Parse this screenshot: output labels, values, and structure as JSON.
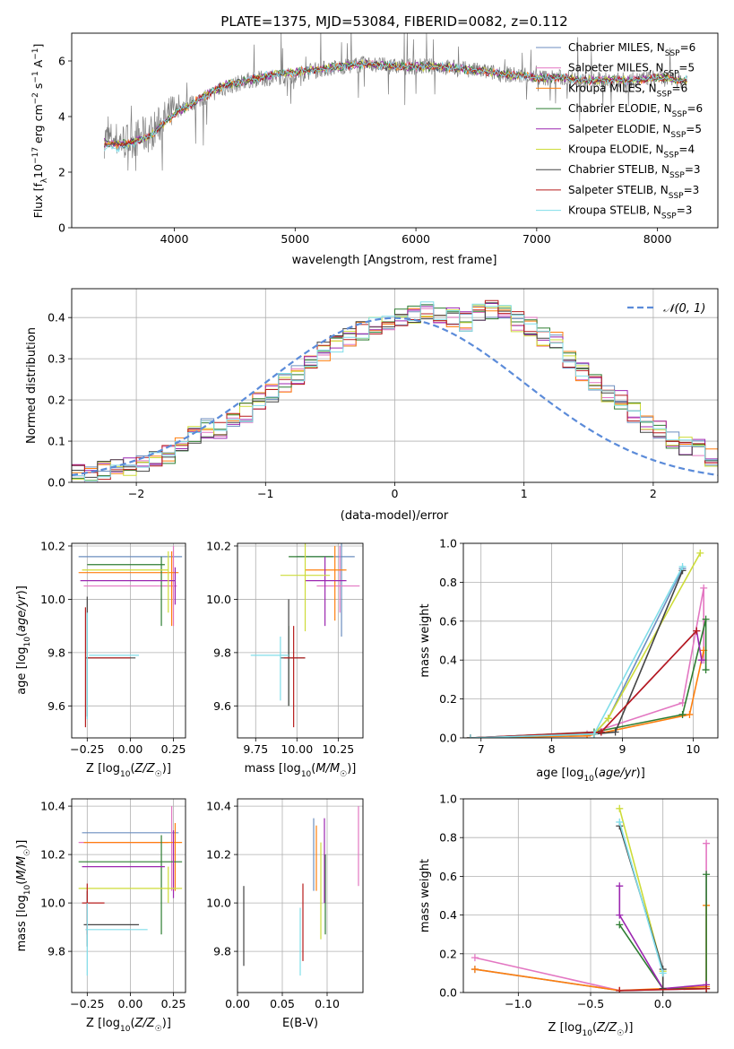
{
  "title": "PLATE=1375, MJD=53084, FIBERID=0082, z=0.112",
  "colors": {
    "chabrier_miles": "#6c8ebf",
    "salpeter_miles": "#e377c2",
    "kroupa_miles": "#ff7f0e",
    "chabrier_elodie": "#2e7d32",
    "salpeter_elodie": "#9c27b0",
    "kroupa_elodie": "#cddc39",
    "chabrier_stelib": "#444444",
    "salpeter_stelib": "#b71c1c",
    "kroupa_stelib": "#80deea",
    "data_spectrum": "#808080",
    "normal_curve": "#5b8bd9"
  },
  "chart_data": [
    {
      "id": "spectrum",
      "type": "line",
      "xlabel": "wavelength [Angstrom, rest frame]",
      "ylabel": "Flux [f_λ10^-17 erg cm^-2 s^-1 A^-1]",
      "xlim": [
        3150,
        8500
      ],
      "ylim": [
        0,
        7
      ],
      "xticks": [
        4000,
        5000,
        6000,
        7000,
        8000
      ],
      "yticks": [
        0,
        2,
        4,
        6
      ],
      "grid": false,
      "legend_position": "top-right",
      "x": [
        3400,
        3600,
        3800,
        4000,
        4200,
        4400,
        4600,
        4800,
        5000,
        5200,
        5400,
        5600,
        5800,
        6000,
        6200,
        6400,
        6600,
        6800,
        7000,
        7200,
        7400,
        7600,
        7800,
        8000,
        8200
      ],
      "series": [
        {
          "name": "data",
          "values": [
            3.2,
            3.1,
            3.4,
            4.2,
            4.6,
            5.0,
            5.3,
            5.4,
            5.5,
            5.7,
            5.8,
            5.9,
            5.8,
            5.8,
            5.8,
            5.7,
            5.6,
            5.5,
            5.4,
            5.4,
            5.3,
            5.3,
            5.3,
            5.4,
            5.3
          ]
        },
        {
          "name": "Chabrier MILES, N_SSP=6",
          "values": [
            3.0,
            3.0,
            3.3,
            4.1,
            4.6,
            5.1,
            5.3,
            5.5,
            5.6,
            5.7,
            5.8,
            5.9,
            5.8,
            5.8,
            5.8,
            5.7,
            5.6,
            5.5,
            5.4,
            5.4,
            5.3,
            5.3,
            5.3,
            5.4,
            5.3
          ]
        },
        {
          "name": "Salpeter MILES, N_SSP=5",
          "values": [
            3.0,
            3.0,
            3.3,
            4.1,
            4.6,
            5.1,
            5.3,
            5.5,
            5.6,
            5.7,
            5.8,
            5.9,
            5.8,
            5.8,
            5.8,
            5.7,
            5.6,
            5.5,
            5.4,
            5.4,
            5.3,
            5.3,
            5.3,
            5.4,
            5.3
          ]
        },
        {
          "name": "Kroupa MILES, N_SSP=6",
          "values": [
            3.0,
            3.0,
            3.3,
            4.1,
            4.6,
            5.1,
            5.3,
            5.5,
            5.6,
            5.7,
            5.8,
            5.9,
            5.8,
            5.8,
            5.8,
            5.7,
            5.6,
            5.5,
            5.4,
            5.4,
            5.3,
            5.3,
            5.3,
            5.4,
            5.3
          ]
        },
        {
          "name": "Chabrier ELODIE, N_SSP=6",
          "values": [
            3.1,
            3.0,
            3.3,
            4.1,
            4.6,
            5.1,
            5.3,
            5.5,
            5.6,
            5.7,
            5.8,
            5.9,
            5.8,
            5.8,
            5.8,
            5.7,
            5.6,
            5.5,
            5.4,
            5.4,
            5.3,
            5.3,
            5.3,
            5.4,
            5.3
          ]
        },
        {
          "name": "Salpeter ELODIE, N_SSP=5",
          "values": [
            3.1,
            3.0,
            3.3,
            4.1,
            4.6,
            5.1,
            5.3,
            5.5,
            5.6,
            5.7,
            5.8,
            5.9,
            5.8,
            5.8,
            5.8,
            5.7,
            5.6,
            5.5,
            5.4,
            5.4,
            5.3,
            5.3,
            5.3,
            5.4,
            5.3
          ]
        },
        {
          "name": "Kroupa ELODIE, N_SSP=4",
          "values": [
            3.1,
            3.0,
            3.3,
            4.1,
            4.6,
            5.1,
            5.3,
            5.5,
            5.6,
            5.7,
            5.8,
            5.9,
            5.8,
            5.8,
            5.8,
            5.7,
            5.6,
            5.5,
            5.4,
            5.4,
            5.3,
            5.3,
            5.3,
            5.4,
            5.3
          ]
        },
        {
          "name": "Chabrier STELIB, N_SSP=3",
          "values": [
            3.0,
            3.0,
            3.3,
            4.1,
            4.6,
            5.1,
            5.3,
            5.5,
            5.6,
            5.7,
            5.8,
            5.9,
            5.8,
            5.8,
            5.8,
            5.7,
            5.6,
            5.5,
            5.4,
            5.4,
            5.3,
            5.3,
            5.3,
            5.4,
            5.3
          ]
        },
        {
          "name": "Salpeter STELIB, N_SSP=3",
          "values": [
            3.0,
            3.0,
            3.3,
            4.1,
            4.6,
            5.1,
            5.3,
            5.5,
            5.6,
            5.7,
            5.8,
            5.9,
            5.8,
            5.8,
            5.8,
            5.7,
            5.6,
            5.5,
            5.4,
            5.4,
            5.3,
            5.3,
            5.3,
            5.4,
            5.3
          ]
        },
        {
          "name": "Kroupa STELIB, N_SSP=3",
          "values": [
            2.8,
            2.9,
            3.3,
            4.1,
            4.6,
            5.1,
            5.3,
            5.5,
            5.6,
            5.7,
            5.8,
            5.9,
            5.8,
            5.8,
            5.8,
            5.7,
            5.6,
            5.5,
            5.4,
            5.4,
            5.3,
            5.3,
            5.3,
            5.4,
            5.3
          ]
        }
      ],
      "legend_labels": [
        {
          "text": "Chabrier MILES, N",
          "sub": "SSP",
          "tail": "=6",
          "color_key": "chabrier_miles"
        },
        {
          "text": "Salpeter MILES, N",
          "sub": "SSP",
          "tail": "=5",
          "color_key": "salpeter_miles"
        },
        {
          "text": "Kroupa MILES, N",
          "sub": "SSP",
          "tail": "=6",
          "color_key": "kroupa_miles"
        },
        {
          "text": "Chabrier ELODIE, N",
          "sub": "SSP",
          "tail": "=6",
          "color_key": "chabrier_elodie"
        },
        {
          "text": "Salpeter ELODIE, N",
          "sub": "SSP",
          "tail": "=5",
          "color_key": "salpeter_elodie"
        },
        {
          "text": "Kroupa ELODIE, N",
          "sub": "SSP",
          "tail": "=4",
          "color_key": "kroupa_elodie"
        },
        {
          "text": "Chabrier STELIB, N",
          "sub": "SSP",
          "tail": "=3",
          "color_key": "chabrier_stelib"
        },
        {
          "text": "Salpeter STELIB, N",
          "sub": "SSP",
          "tail": "=3",
          "color_key": "salpeter_stelib"
        },
        {
          "text": "Kroupa STELIB, N",
          "sub": "SSP",
          "tail": "=3",
          "color_key": "kroupa_stelib"
        }
      ]
    },
    {
      "id": "residual_histogram",
      "type": "bar",
      "xlabel": "(data-model)/error",
      "ylabel": "Normed distribution",
      "xlim": [
        -2.5,
        2.5
      ],
      "ylim": [
        0,
        0.47
      ],
      "xticks": [
        -2,
        -1,
        0,
        1,
        2
      ],
      "yticks": [
        0.0,
        0.1,
        0.2,
        0.3,
        0.4
      ],
      "grid": true,
      "legend_position": "top-right",
      "legend": "𝒩(0, 1)",
      "bin_edges_start": -2.5,
      "bin_width": 0.1,
      "approx_density": [
        0.02,
        0.02,
        0.03,
        0.04,
        0.04,
        0.04,
        0.05,
        0.07,
        0.1,
        0.12,
        0.13,
        0.13,
        0.15,
        0.17,
        0.2,
        0.22,
        0.24,
        0.26,
        0.29,
        0.32,
        0.34,
        0.35,
        0.37,
        0.38,
        0.39,
        0.4,
        0.41,
        0.42,
        0.41,
        0.4,
        0.39,
        0.41,
        0.42,
        0.41,
        0.39,
        0.38,
        0.35,
        0.34,
        0.3,
        0.27,
        0.24,
        0.22,
        0.2,
        0.17,
        0.14,
        0.13,
        0.1,
        0.09,
        0.08,
        0.06,
        0.05,
        0.04,
        0.03,
        0.02
      ]
    },
    {
      "id": "age_vs_Z",
      "type": "scatter",
      "xlabel": "Z [log10(Z/Z☉)]",
      "ylabel": "age [log10(age/yr)]",
      "xlim": [
        -0.34,
        0.32
      ],
      "ylim": [
        9.48,
        10.21
      ],
      "xticks": [
        -0.25,
        0.0,
        0.25
      ],
      "yticks": [
        9.6,
        9.8,
        10.0,
        10.2
      ],
      "grid": true
    },
    {
      "id": "age_vs_mass",
      "type": "scatter",
      "xlabel": "mass [log10(M/M☉)]",
      "ylabel": "",
      "xlim": [
        9.64,
        10.4
      ],
      "ylim": [
        9.48,
        10.21
      ],
      "xticks": [
        9.75,
        10.0,
        10.25
      ],
      "yticks": [
        9.6,
        9.8,
        10.0,
        10.2
      ],
      "grid": true
    },
    {
      "id": "massweight_vs_age",
      "type": "line",
      "xlabel": "age [log10(age/yr)]",
      "ylabel": "mass weight",
      "xlim": [
        6.75,
        10.35
      ],
      "ylim": [
        0,
        1
      ],
      "xticks": [
        7,
        8,
        9,
        10
      ],
      "yticks": [
        0.0,
        0.2,
        0.4,
        0.6,
        0.8,
        1.0
      ],
      "grid": true,
      "series": [
        {
          "color_key": "chabrier_miles",
          "points": [
            [
              6.85,
              0.0
            ],
            [
              8.6,
              0.02
            ],
            [
              8.8,
              0.1
            ],
            [
              9.85,
              0.87
            ]
          ]
        },
        {
          "color_key": "salpeter_miles",
          "points": [
            [
              6.85,
              0.0
            ],
            [
              8.5,
              0.02
            ],
            [
              9.85,
              0.18
            ],
            [
              10.15,
              0.77
            ],
            [
              10.15,
              0.4
            ]
          ]
        },
        {
          "color_key": "kroupa_miles",
          "points": [
            [
              6.85,
              0.0
            ],
            [
              8.5,
              0.01
            ],
            [
              9.95,
              0.12
            ],
            [
              10.15,
              0.45
            ]
          ]
        },
        {
          "color_key": "chabrier_elodie",
          "points": [
            [
              6.85,
              0.0
            ],
            [
              8.6,
              0.03
            ],
            [
              9.85,
              0.12
            ],
            [
              10.18,
              0.61
            ],
            [
              10.18,
              0.35
            ]
          ]
        },
        {
          "color_key": "salpeter_elodie",
          "points": [
            [
              6.85,
              0.0
            ],
            [
              8.7,
              0.03
            ],
            [
              10.05,
              0.55
            ],
            [
              10.12,
              0.4
            ]
          ]
        },
        {
          "color_key": "kroupa_elodie",
          "points": [
            [
              6.85,
              0.0
            ],
            [
              8.6,
              0.02
            ],
            [
              8.8,
              0.1
            ],
            [
              10.1,
              0.95
            ]
          ]
        },
        {
          "color_key": "chabrier_stelib",
          "points": [
            [
              6.85,
              0.0
            ],
            [
              8.6,
              0.02
            ],
            [
              8.9,
              0.03
            ],
            [
              9.85,
              0.86
            ]
          ]
        },
        {
          "color_key": "salpeter_stelib",
          "points": [
            [
              6.85,
              0.0
            ],
            [
              8.7,
              0.03
            ],
            [
              10.05,
              0.55
            ]
          ]
        },
        {
          "color_key": "kroupa_stelib",
          "points": [
            [
              6.85,
              0.0
            ],
            [
              8.6,
              0.02
            ],
            [
              9.85,
              0.88
            ]
          ]
        }
      ]
    },
    {
      "id": "mass_vs_Z",
      "type": "scatter",
      "xlabel": "Z [log10(Z/Z☉)]",
      "ylabel": "mass [log10(M/M☉)]",
      "xlim": [
        -0.34,
        0.32
      ],
      "ylim": [
        9.63,
        10.43
      ],
      "xticks": [
        -0.25,
        0.0,
        0.25
      ],
      "yticks": [
        9.8,
        10.0,
        10.2,
        10.4
      ],
      "grid": true
    },
    {
      "id": "mass_vs_EBV",
      "type": "scatter",
      "xlabel": "E(B-V)",
      "ylabel": "",
      "xlim": [
        0.0,
        0.14
      ],
      "ylim": [
        9.63,
        10.43
      ],
      "xticks": [
        0.0,
        0.05,
        0.1
      ],
      "yticks": [
        9.8,
        10.0,
        10.2,
        10.4
      ],
      "grid": true
    },
    {
      "id": "massweight_vs_Z",
      "type": "line",
      "xlabel": "Z [log10(Z/Z☉)]",
      "ylabel": "mass weight",
      "xlim": [
        -1.38,
        0.38
      ],
      "ylim": [
        0,
        1
      ],
      "xticks": [
        -1.0,
        -0.5,
        0.0
      ],
      "yticks": [
        0.0,
        0.2,
        0.4,
        0.6,
        0.8,
        1.0
      ],
      "grid": true,
      "series": [
        {
          "color_key": "chabrier_miles",
          "points": [
            [
              -1.3,
              0.12
            ],
            [
              -0.3,
              0.01
            ],
            [
              0.3,
              0.02
            ]
          ]
        },
        {
          "color_key": "salpeter_miles",
          "points": [
            [
              -1.3,
              0.18
            ],
            [
              -0.3,
              0.01
            ],
            [
              0.3,
              0.02
            ],
            [
              0.3,
              0.77
            ]
          ]
        },
        {
          "color_key": "kroupa_miles",
          "points": [
            [
              -1.3,
              0.12
            ],
            [
              -0.3,
              0.01
            ],
            [
              0.3,
              0.03
            ],
            [
              0.3,
              0.45
            ]
          ]
        },
        {
          "color_key": "chabrier_elodie",
          "points": [
            [
              -0.3,
              0.35
            ],
            [
              0.0,
              0.02
            ],
            [
              0.3,
              0.02
            ],
            [
              0.3,
              0.61
            ]
          ]
        },
        {
          "color_key": "salpeter_elodie",
          "points": [
            [
              -0.3,
              0.55
            ],
            [
              -0.3,
              0.4
            ],
            [
              0.0,
              0.02
            ],
            [
              0.3,
              0.04
            ]
          ]
        },
        {
          "color_key": "kroupa_elodie",
          "points": [
            [
              -0.3,
              0.95
            ],
            [
              0.0,
              0.11
            ],
            [
              0.0,
              0.02
            ]
          ]
        },
        {
          "color_key": "chabrier_stelib",
          "points": [
            [
              -0.3,
              0.86
            ],
            [
              0.0,
              0.12
            ],
            [
              0.0,
              0.02
            ]
          ]
        },
        {
          "color_key": "salpeter_stelib",
          "points": [
            [
              -0.3,
              0.01
            ],
            [
              0.3,
              0.02
            ]
          ]
        },
        {
          "color_key": "kroupa_stelib",
          "points": [
            [
              -0.3,
              0.88
            ],
            [
              0.0,
              0.1
            ]
          ]
        }
      ]
    }
  ]
}
